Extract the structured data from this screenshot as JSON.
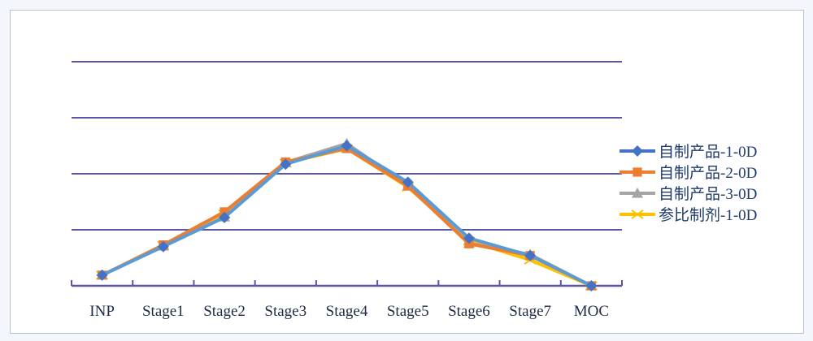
{
  "chart_data": {
    "type": "line",
    "categories": [
      "INP",
      "Stage1",
      "Stage2",
      "Stage3",
      "Stage4",
      "Stage5",
      "Stage6",
      "Stage7",
      "MOC"
    ],
    "ylim": [
      0,
      40
    ],
    "grid": true,
    "y_tick_labels_shown": false,
    "legend_position": "right",
    "series": [
      {
        "name": "自制产品-1-0D",
        "color": "#4472C4",
        "line_color": "#5B9BD5",
        "marker": "diamond",
        "values": [
          1.9,
          7.0,
          12.2,
          21.7,
          25.0,
          18.5,
          8.5,
          5.4,
          0
        ]
      },
      {
        "name": "自制产品-2-0D",
        "color": "#ED7D31",
        "marker": "square",
        "values": [
          1.9,
          7.3,
          13.2,
          22.1,
          24.5,
          17.8,
          7.5,
          5.4,
          0
        ]
      },
      {
        "name": "自制产品-3-0D",
        "color": "#A5A5A5",
        "marker": "triangle",
        "values": [
          1.9,
          7.1,
          12.3,
          22.0,
          25.4,
          17.9,
          7.6,
          5.6,
          0
        ]
      },
      {
        "name": "参比制剂-1-0D",
        "color": "#FFC000",
        "marker": "x",
        "values": [
          1.9,
          7.2,
          12.8,
          21.9,
          24.5,
          17.6,
          8.0,
          4.6,
          0
        ]
      }
    ]
  }
}
